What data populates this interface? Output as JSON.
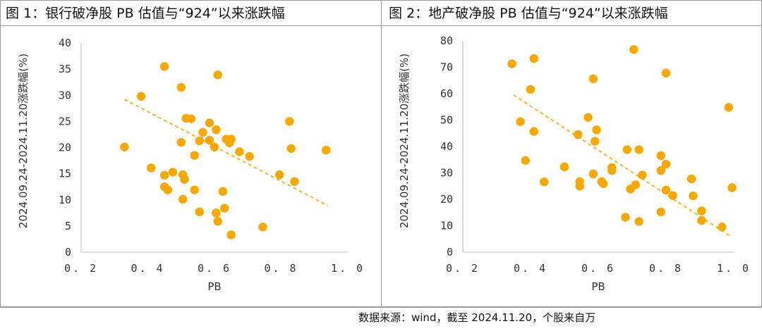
{
  "panels": [
    {
      "title": "图 1：银行破净股 PB 估值与“924”以来涨跌幅"
    },
    {
      "title": "图 2：地产破净股 PB 估值与“924”以来涨跌幅"
    }
  ],
  "source_note": "数据来源：wind，截至 2024.11.20，个股来自万",
  "colors": {
    "points": "#f5a800",
    "trendline": "#f5a800",
    "axis": "#bfbfbf",
    "border": "#9a9a9a"
  },
  "chart_data": [
    {
      "type": "scatter",
      "title": "",
      "xlabel": "PB",
      "ylabel": "2024.09.24-2024.11.20涨跌幅(%)",
      "xlim": [
        0.2,
        1.0
      ],
      "ylim": [
        0,
        40
      ],
      "x_ticks": [
        "0.2",
        "0.4",
        "0.6",
        "0.8",
        "1.0"
      ],
      "y_ticks": [
        "0",
        "5",
        "10",
        "15",
        "20",
        "25",
        "30",
        "35",
        "40"
      ],
      "grid": false,
      "trendline": {
        "style": "dashed",
        "from": [
          0.33,
          29.2
        ],
        "to": [
          0.94,
          8.9
        ]
      },
      "points": [
        [
          0.33,
          20.1
        ],
        [
          0.38,
          29.8
        ],
        [
          0.41,
          16.1
        ],
        [
          0.45,
          35.5
        ],
        [
          0.45,
          14.7
        ],
        [
          0.45,
          12.5
        ],
        [
          0.46,
          11.9
        ],
        [
          0.475,
          15.3
        ],
        [
          0.5,
          31.5
        ],
        [
          0.5,
          21.0
        ],
        [
          0.505,
          14.8
        ],
        [
          0.51,
          13.9
        ],
        [
          0.505,
          10.1
        ],
        [
          0.515,
          25.6
        ],
        [
          0.53,
          25.5
        ],
        [
          0.54,
          18.5
        ],
        [
          0.54,
          11.9
        ],
        [
          0.555,
          21.3
        ],
        [
          0.555,
          7.7
        ],
        [
          0.565,
          22.9
        ],
        [
          0.585,
          24.7
        ],
        [
          0.585,
          21.4
        ],
        [
          0.6,
          20.1
        ],
        [
          0.605,
          23.4
        ],
        [
          0.61,
          33.9
        ],
        [
          0.605,
          7.5
        ],
        [
          0.61,
          5.9
        ],
        [
          0.625,
          11.6
        ],
        [
          0.63,
          8.4
        ],
        [
          0.635,
          21.6
        ],
        [
          0.65,
          21.6
        ],
        [
          0.645,
          20.9
        ],
        [
          0.65,
          3.3
        ],
        [
          0.675,
          19.2
        ],
        [
          0.705,
          18.3
        ],
        [
          0.745,
          4.8
        ],
        [
          0.795,
          14.8
        ],
        [
          0.825,
          25.0
        ],
        [
          0.83,
          19.8
        ],
        [
          0.84,
          13.5
        ],
        [
          0.935,
          19.5
        ]
      ]
    },
    {
      "type": "scatter",
      "title": "",
      "xlabel": "PB",
      "ylabel": "2024.09.24-2024.11.20涨跌幅(%)",
      "xlim": [
        0.2,
        1.0
      ],
      "ylim": [
        0,
        80
      ],
      "x_ticks": [
        "0.2",
        "0.4",
        "0.6",
        "0.8",
        "1.0"
      ],
      "y_ticks": [
        "0",
        "10",
        "20",
        "30",
        "40",
        "50",
        "60",
        "70",
        "80"
      ],
      "grid": false,
      "trendline": {
        "style": "dashed",
        "from": [
          0.35,
          59.5
        ],
        "to": [
          0.99,
          6.0
        ]
      },
      "points": [
        [
          0.345,
          71.3
        ],
        [
          0.37,
          49.4
        ],
        [
          0.385,
          34.7
        ],
        [
          0.4,
          61.6
        ],
        [
          0.41,
          73.3
        ],
        [
          0.41,
          45.7
        ],
        [
          0.44,
          26.6
        ],
        [
          0.5,
          32.3
        ],
        [
          0.54,
          44.5
        ],
        [
          0.545,
          26.7
        ],
        [
          0.545,
          25.0
        ],
        [
          0.57,
          51.0
        ],
        [
          0.585,
          65.6
        ],
        [
          0.59,
          42.0
        ],
        [
          0.585,
          29.6
        ],
        [
          0.595,
          46.3
        ],
        [
          0.61,
          26.7
        ],
        [
          0.615,
          25.9
        ],
        [
          0.64,
          32.0
        ],
        [
          0.64,
          30.9
        ],
        [
          0.68,
          13.2
        ],
        [
          0.685,
          38.8
        ],
        [
          0.695,
          23.9
        ],
        [
          0.705,
          76.7
        ],
        [
          0.71,
          25.5
        ],
        [
          0.72,
          38.8
        ],
        [
          0.72,
          11.6
        ],
        [
          0.73,
          29.2
        ],
        [
          0.785,
          36.5
        ],
        [
          0.785,
          30.9
        ],
        [
          0.785,
          15.2
        ],
        [
          0.8,
          33.3
        ],
        [
          0.8,
          23.5
        ],
        [
          0.8,
          67.8
        ],
        [
          0.82,
          21.4
        ],
        [
          0.875,
          27.7
        ],
        [
          0.88,
          21.3
        ],
        [
          0.905,
          15.6
        ],
        [
          0.905,
          12.0
        ],
        [
          0.965,
          9.5
        ],
        [
          0.985,
          54.8
        ],
        [
          0.995,
          24.4
        ]
      ]
    }
  ]
}
